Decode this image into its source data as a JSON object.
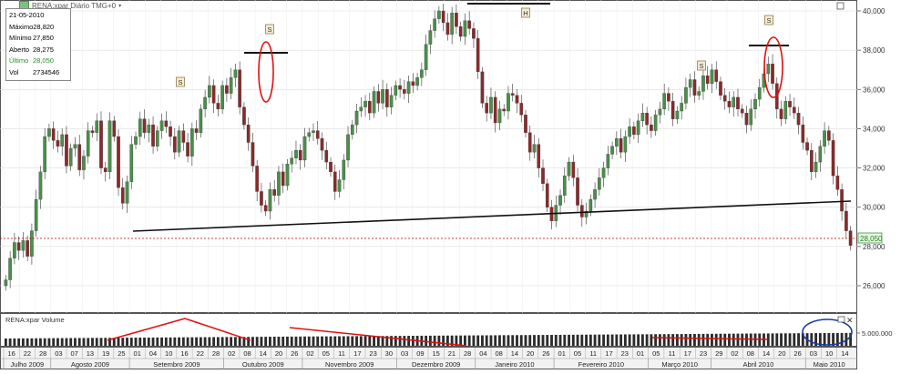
{
  "header": {
    "symbol_label": "RENA:xpar Diário TMG+0"
  },
  "info_box": {
    "date": "21-05-2010",
    "rows": [
      {
        "label": "Máximo",
        "value": "28,820"
      },
      {
        "label": "Mínimo",
        "value": "27,850"
      },
      {
        "label": "Aberto",
        "value": "28,275"
      },
      {
        "label": "Último",
        "value": "28,050"
      },
      {
        "label": "Vol",
        "value": "2734546"
      }
    ]
  },
  "volume_panel": {
    "title": "RENA:xpar Volume",
    "tick_label": "5.000.000"
  },
  "price_tag": "28,050",
  "colors": {
    "up": "#4a8f4a",
    "down": "#8a2a2a",
    "trend": "#e01010",
    "annotation_red": "#e01010",
    "annotation_blue": "#1a3aa8",
    "last_line": "#c00000"
  },
  "chart_data": {
    "type": "candlestick",
    "yaxis": {
      "ticks": [
        "26,000",
        "28,000",
        "30,000",
        "32,000",
        "34,000",
        "36,000",
        "38,000",
        "40,000"
      ],
      "ylim": [
        25000,
        40500
      ],
      "side": "right"
    },
    "x_day_labels": [
      "16",
      "22",
      "28",
      "03",
      "07",
      "13",
      "19",
      "25",
      "01",
      "04",
      "10",
      "16",
      "22",
      "28",
      "02",
      "08",
      "14",
      "20",
      "26",
      "02",
      "05",
      "11",
      "17",
      "23",
      "30",
      "03",
      "09",
      "15",
      "21",
      "28",
      "04",
      "08",
      "14",
      "20",
      "26",
      "01",
      "05",
      "11",
      "17",
      "23",
      "01",
      "05",
      "11",
      "17",
      "23",
      "29",
      "02",
      "08",
      "14",
      "20",
      "26",
      "03",
      "10",
      "14"
    ],
    "x_month_labels": [
      "Julho 2009",
      "Agosto 2009",
      "Setembro 2009",
      "Outubro 2009",
      "Novembro 2009",
      "Dezembro 2009",
      "Janeiro 2010",
      "Fevereiro 2010",
      "Março 2010",
      "Abril 2010",
      "Maio 2010"
    ],
    "closes": [
      26300,
      27400,
      28200,
      27800,
      28300,
      27500,
      28800,
      30400,
      31800,
      33600,
      34000,
      33400,
      33100,
      33700,
      32100,
      33000,
      33200,
      31900,
      32600,
      33900,
      33800,
      34400,
      32000,
      31800,
      34400,
      33600,
      31000,
      30200,
      31300,
      33200,
      33600,
      34500,
      33800,
      34200,
      33100,
      33900,
      34400,
      34100,
      33600,
      32800,
      33900,
      33300,
      32600,
      34000,
      33800,
      35000,
      35600,
      36200,
      35300,
      35000,
      36200,
      35800,
      36600,
      37000,
      35100,
      34200,
      33300,
      32100,
      30800,
      30100,
      29800,
      30900,
      30600,
      31800,
      31100,
      32200,
      32500,
      32900,
      32400,
      33600,
      33800,
      33900,
      33500,
      32900,
      32300,
      31800,
      30800,
      31400,
      32400,
      33700,
      34200,
      34900,
      35100,
      35400,
      34800,
      35900,
      35300,
      36000,
      35100,
      35700,
      36200,
      36000,
      35800,
      36400,
      36200,
      36600,
      37000,
      38300,
      39000,
      39600,
      40000,
      39400,
      38800,
      39900,
      39200,
      38700,
      39500,
      39100,
      38600,
      36900,
      35300,
      34800,
      35600,
      34300,
      35000,
      34900,
      35800,
      35700,
      35300,
      34700,
      33800,
      32800,
      33200,
      32000,
      31200,
      30000,
      29300,
      30100,
      30600,
      31600,
      32300,
      31500,
      30100,
      29500,
      29800,
      30400,
      30900,
      31500,
      32000,
      32700,
      33100,
      33500,
      32800,
      33600,
      34100,
      33700,
      34400,
      34800,
      34200,
      33900,
      34700,
      35000,
      35800,
      35400,
      34500,
      34900,
      35300,
      36100,
      36500,
      35700,
      35900,
      36700,
      36300,
      37000,
      36400,
      35700,
      35400,
      35100,
      35600,
      35000,
      34800,
      34200,
      35000,
      35500,
      36100,
      36800,
      37300,
      36300,
      35000,
      34500,
      35400,
      35100,
      34800,
      34200,
      33300,
      32900,
      31800,
      32300,
      33100,
      33900,
      33400,
      31600,
      30900,
      29800,
      28800,
      28050
    ],
    "volume_note": "daily volume bars, approximately 2,000,000 to 6,500,000"
  },
  "annotations": {
    "markers": [
      {
        "label": "S"
      },
      {
        "label": "S"
      },
      {
        "label": "H"
      },
      {
        "label": "S"
      },
      {
        "label": "S"
      }
    ]
  }
}
